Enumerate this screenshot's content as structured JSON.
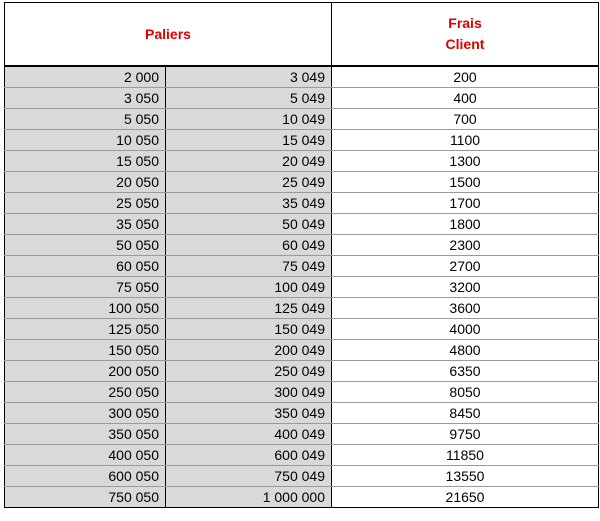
{
  "header": {
    "paliers": "Paliers",
    "frais_line1": "Frais",
    "frais_line2": "Client"
  },
  "rows": [
    {
      "from": "2 000",
      "to": "3 049",
      "fee": "200"
    },
    {
      "from": "3 050",
      "to": "5 049",
      "fee": "400"
    },
    {
      "from": "5 050",
      "to": "10 049",
      "fee": "700"
    },
    {
      "from": "10 050",
      "to": "15 049",
      "fee": "1100"
    },
    {
      "from": "15 050",
      "to": "20 049",
      "fee": "1300"
    },
    {
      "from": "20 050",
      "to": "25 049",
      "fee": "1500"
    },
    {
      "from": "25 050",
      "to": "35 049",
      "fee": "1700"
    },
    {
      "from": "35 050",
      "to": "50 049",
      "fee": "1800"
    },
    {
      "from": "50 050",
      "to": "60 049",
      "fee": "2300"
    },
    {
      "from": "60 050",
      "to": "75 049",
      "fee": "2700"
    },
    {
      "from": "75 050",
      "to": "100 049",
      "fee": "3200"
    },
    {
      "from": "100 050",
      "to": "125 049",
      "fee": "3600"
    },
    {
      "from": "125 050",
      "to": "150 049",
      "fee": "4000"
    },
    {
      "from": "150 050",
      "to": "200 049",
      "fee": "4800"
    },
    {
      "from": "200 050",
      "to": "250 049",
      "fee": "6350"
    },
    {
      "from": "250 050",
      "to": "300 049",
      "fee": "8050"
    },
    {
      "from": "300 050",
      "to": "350 049",
      "fee": "8450"
    },
    {
      "from": "350 050",
      "to": "400 049",
      "fee": "9750"
    },
    {
      "from": "400 050",
      "to": "600 049",
      "fee": "11850"
    },
    {
      "from": "600 050",
      "to": "750 049",
      "fee": "13550"
    },
    {
      "from": "750 050",
      "to": "1 000 000",
      "fee": "21650"
    }
  ],
  "colors": {
    "header_text": "#e00000",
    "range_bg": "#d9d9d9",
    "fee_bg": "#ffffff"
  }
}
